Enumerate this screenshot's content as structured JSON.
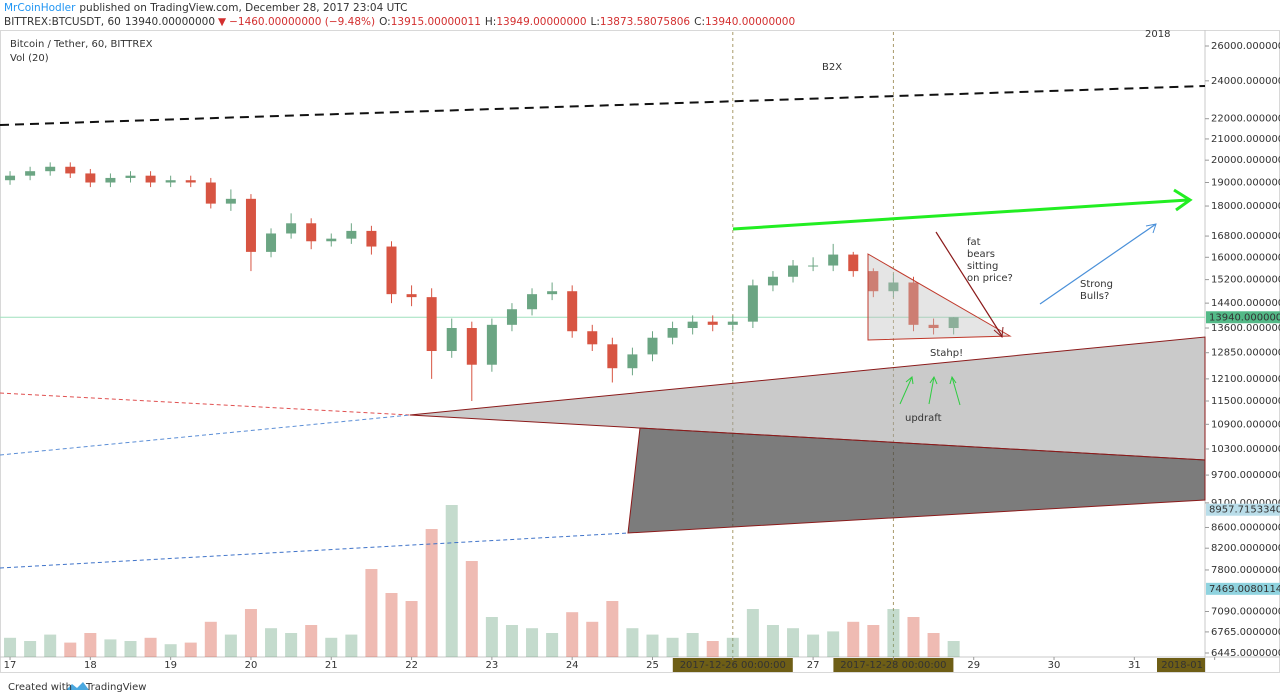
{
  "header": {
    "author": "MrCoinHodler",
    "published": "published on TradingView.com, December 28, 2017 23:04 UTC",
    "symbol": "BITTREX:BTCUSDT, 60",
    "last": "13940.00000000",
    "arrow": "▼",
    "change": "−1460.00000000 (−9.48%)",
    "o_label": "O:",
    "open": "13915.00000011",
    "h_label": "H:",
    "high": "13949.00000000",
    "l_label": "L:",
    "low": "13873.58075806",
    "c_label": "C:",
    "close": "13940.00000000"
  },
  "chart_data": {
    "type": "candlestick",
    "title": "Bitcoin / Tether, 60, BITTREX",
    "indicator": "Vol (20)",
    "log_scale": true,
    "grid": false,
    "up_color": "#6ba583",
    "down_color": "#d75442",
    "x": [
      0,
      0.25,
      0.5,
      0.75,
      1,
      1.25,
      1.5,
      1.75,
      2,
      2.25,
      2.5,
      2.75,
      3,
      3.25,
      3.5,
      3.75,
      4,
      4.25,
      4.5,
      4.75,
      5,
      5.25,
      5.5,
      5.75,
      6,
      6.25,
      6.5,
      6.75,
      7,
      7.25,
      7.5,
      7.75,
      8,
      8.25,
      8.5,
      8.75,
      9,
      9.25,
      9.5,
      9.75,
      10,
      10.25,
      10.5,
      10.75,
      11,
      11.25,
      11.5,
      11.75
    ],
    "open": [
      19100,
      19300,
      19500,
      19700,
      19400,
      19000,
      19200,
      19300,
      19000,
      19100,
      19000,
      18100,
      18300,
      16200,
      16900,
      17300,
      16600,
      16700,
      17000,
      16400,
      14700,
      14600,
      12900,
      13600,
      12500,
      13700,
      14200,
      14700,
      14800,
      13500,
      13100,
      12400,
      12800,
      13300,
      13600,
      13800,
      13700,
      13800,
      15000,
      15300,
      15700,
      15700,
      16100,
      15500,
      14800,
      15100,
      13700,
      13600
    ],
    "high": [
      19500,
      19700,
      19900,
      19900,
      19600,
      19400,
      19500,
      19500,
      19300,
      19300,
      19200,
      18700,
      18500,
      17100,
      17700,
      17500,
      16900,
      17300,
      17200,
      16600,
      15000,
      14900,
      13900,
      13800,
      13900,
      14400,
      14900,
      15100,
      15000,
      13700,
      13300,
      13000,
      13500,
      13800,
      14000,
      14000,
      14000,
      15200,
      15500,
      15900,
      16000,
      16500,
      16200,
      15600,
      15400,
      15300,
      13900,
      13949
    ],
    "low": [
      18900,
      19100,
      19300,
      19200,
      18800,
      18800,
      19000,
      18800,
      18800,
      18800,
      17900,
      17800,
      15500,
      16000,
      16700,
      16300,
      16400,
      16500,
      16100,
      14400,
      14300,
      12100,
      12700,
      11500,
      12300,
      13500,
      14000,
      14500,
      13300,
      12900,
      12000,
      12200,
      12600,
      13100,
      13400,
      13500,
      13500,
      13600,
      14800,
      15100,
      15500,
      15500,
      15300,
      14600,
      14600,
      13500,
      13400,
      13400
    ],
    "close": [
      19300,
      19500,
      19700,
      19400,
      19000,
      19200,
      19300,
      19000,
      19100,
      19000,
      18100,
      18300,
      16200,
      16900,
      17300,
      16600,
      16700,
      17000,
      16400,
      14700,
      14600,
      12900,
      13600,
      12500,
      13700,
      14200,
      14700,
      14800,
      13500,
      13100,
      12400,
      12800,
      13300,
      13600,
      13800,
      13700,
      13800,
      15000,
      15300,
      15700,
      15700,
      16100,
      15500,
      14800,
      15100,
      13700,
      13600,
      13940
    ],
    "volume": {
      "vlim": [
        0,
        100
      ],
      "values": [
        12,
        10,
        14,
        9,
        15,
        11,
        10,
        12,
        8,
        9,
        22,
        14,
        30,
        18,
        15,
        20,
        12,
        14,
        55,
        40,
        35,
        80,
        95,
        60,
        25,
        20,
        18,
        15,
        28,
        22,
        35,
        18,
        14,
        12,
        15,
        10,
        12,
        30,
        20,
        18,
        14,
        16,
        22,
        20,
        30,
        25,
        15,
        10
      ]
    },
    "xlim": [
      -0.125,
      14.88
    ],
    "xticks": [
      {
        "value": 0,
        "label": "17"
      },
      {
        "value": 1,
        "label": "18"
      },
      {
        "value": 2,
        "label": "19"
      },
      {
        "value": 3,
        "label": "20"
      },
      {
        "value": 4,
        "label": "21"
      },
      {
        "value": 5,
        "label": "22"
      },
      {
        "value": 6,
        "label": "23"
      },
      {
        "value": 7,
        "label": "24"
      },
      {
        "value": 8,
        "label": "25"
      },
      {
        "value": 9,
        "label": "2017-12-26 00:00:00"
      },
      {
        "value": 10,
        "label": "27"
      },
      {
        "value": 11,
        "label": "2017-12-28 00:00:00"
      },
      {
        "value": 12,
        "label": "29"
      },
      {
        "value": 13,
        "label": "30"
      },
      {
        "value": 14,
        "label": "31"
      },
      {
        "value": 15,
        "label": "2018-01"
      }
    ],
    "ylim": [
      6386,
      26850
    ],
    "yticks": [
      {
        "value": 26000,
        "label": "26000.00000000"
      },
      {
        "value": 24000,
        "label": "24000.00000000"
      },
      {
        "value": 22000,
        "label": "22000.00000000"
      },
      {
        "value": 21000,
        "label": "21000.00000000"
      },
      {
        "value": 20000,
        "label": "20000.00000000"
      },
      {
        "value": 19000,
        "label": "19000.00000000"
      },
      {
        "value": 18000,
        "label": "18000.00000000"
      },
      {
        "value": 16800,
        "label": "16800.00000000"
      },
      {
        "value": 16000,
        "label": "16000.00000000"
      },
      {
        "value": 15200,
        "label": "15200.00000000"
      },
      {
        "value": 14400,
        "label": "14400.00000000"
      },
      {
        "value": 13600,
        "label": "13600.00000000"
      },
      {
        "value": 12850,
        "label": "12850.00000000"
      },
      {
        "value": 12100,
        "label": "12100.00000000"
      },
      {
        "value": 11500,
        "label": "11500.00000000"
      },
      {
        "value": 10900,
        "label": "10900.00000000"
      },
      {
        "value": 10300,
        "label": "10300.00000000"
      },
      {
        "value": 9700,
        "label": "9700.00000000"
      },
      {
        "value": 9100,
        "label": "9100.00000000"
      },
      {
        "value": 8600,
        "label": "8600.00000000"
      },
      {
        "value": 8200,
        "label": "8200.00000000"
      },
      {
        "value": 7800,
        "label": "7800.00000000"
      },
      {
        "value": 7090,
        "label": "7090.00000000"
      },
      {
        "value": 6765,
        "label": "6765.00000000"
      },
      {
        "value": 6445,
        "label": "6445.00000000"
      }
    ],
    "price_labels": [
      {
        "value": 13940,
        "label": "13940.00000000",
        "color": "#53b987"
      },
      {
        "value": 8957.71533403,
        "label": "8957.71533403",
        "color": "#b9dde9"
      },
      {
        "value": 7469.00801142,
        "label": "7469.00801142",
        "color": "#8fd3df"
      }
    ],
    "annotations": [
      [
        "2018"
      ],
      [
        "B2X"
      ],
      [
        "fat",
        "bears",
        "sitting",
        "on price?"
      ],
      [
        "Strong",
        "Bulls?"
      ],
      [
        "Stahp!"
      ],
      [
        "updraft"
      ]
    ]
  },
  "footer": {
    "created": "Created with",
    "brand": "TradingView"
  }
}
